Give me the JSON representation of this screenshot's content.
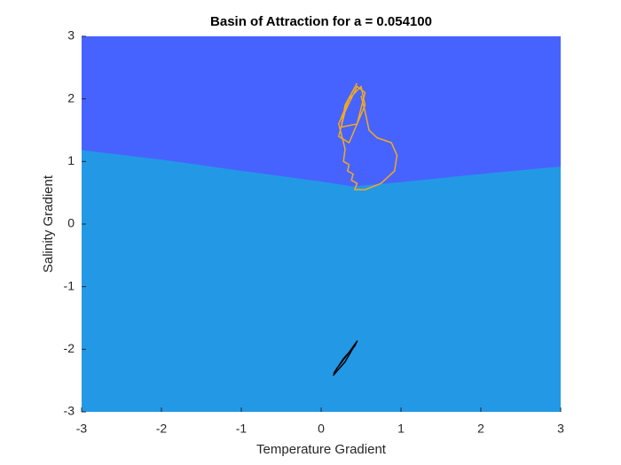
{
  "chart_data": {
    "type": "basin",
    "title": "Basin of Attraction for a = 0.054100",
    "x_label": "Temperature Gradient",
    "y_label": "Salinity Gradient",
    "xlim": [
      -3,
      3
    ],
    "ylim": [
      -3,
      3
    ],
    "xticks": [
      -3,
      -2,
      -1,
      0,
      1,
      2,
      3
    ],
    "yticks": [
      -3,
      -2,
      -1,
      0,
      1,
      2,
      3
    ],
    "upper_color": "#4763ff",
    "lower_color": "#2399e6",
    "boundary": {
      "x": [
        -3,
        -2,
        -1,
        0,
        0.4,
        1,
        2,
        3
      ],
      "y": [
        1.18,
        1.03,
        0.85,
        0.68,
        0.6,
        0.67,
        0.8,
        0.92
      ]
    },
    "series": [
      {
        "color": "#f2a91f",
        "x": [
          0.45,
          0.3,
          0.25,
          0.45,
          0.55,
          0.45,
          0.3,
          0.22,
          0.35,
          0.55,
          0.5,
          0.35,
          0.22,
          0.3,
          0.28,
          0.35,
          0.33,
          0.4,
          0.38,
          0.45,
          0.42,
          0.55,
          0.75,
          0.92,
          0.95,
          0.88,
          0.7,
          0.6,
          0.55,
          0.5
        ],
        "y": [
          2.25,
          1.9,
          1.55,
          1.6,
          2.1,
          2.2,
          1.8,
          1.4,
          1.3,
          1.9,
          2.2,
          2.0,
          1.6,
          1.2,
          1.0,
          0.95,
          0.85,
          0.8,
          0.7,
          0.65,
          0.55,
          0.55,
          0.65,
          0.85,
          1.1,
          1.3,
          1.38,
          1.5,
          1.8,
          2.05
        ]
      },
      {
        "color": "#000000",
        "x": [
          0.15,
          0.3,
          0.45,
          0.42,
          0.28,
          0.16,
          0.2,
          0.35,
          0.45
        ],
        "y": [
          -2.42,
          -2.2,
          -1.87,
          -1.95,
          -2.15,
          -2.38,
          -2.3,
          -2.05,
          -1.87
        ]
      }
    ]
  }
}
